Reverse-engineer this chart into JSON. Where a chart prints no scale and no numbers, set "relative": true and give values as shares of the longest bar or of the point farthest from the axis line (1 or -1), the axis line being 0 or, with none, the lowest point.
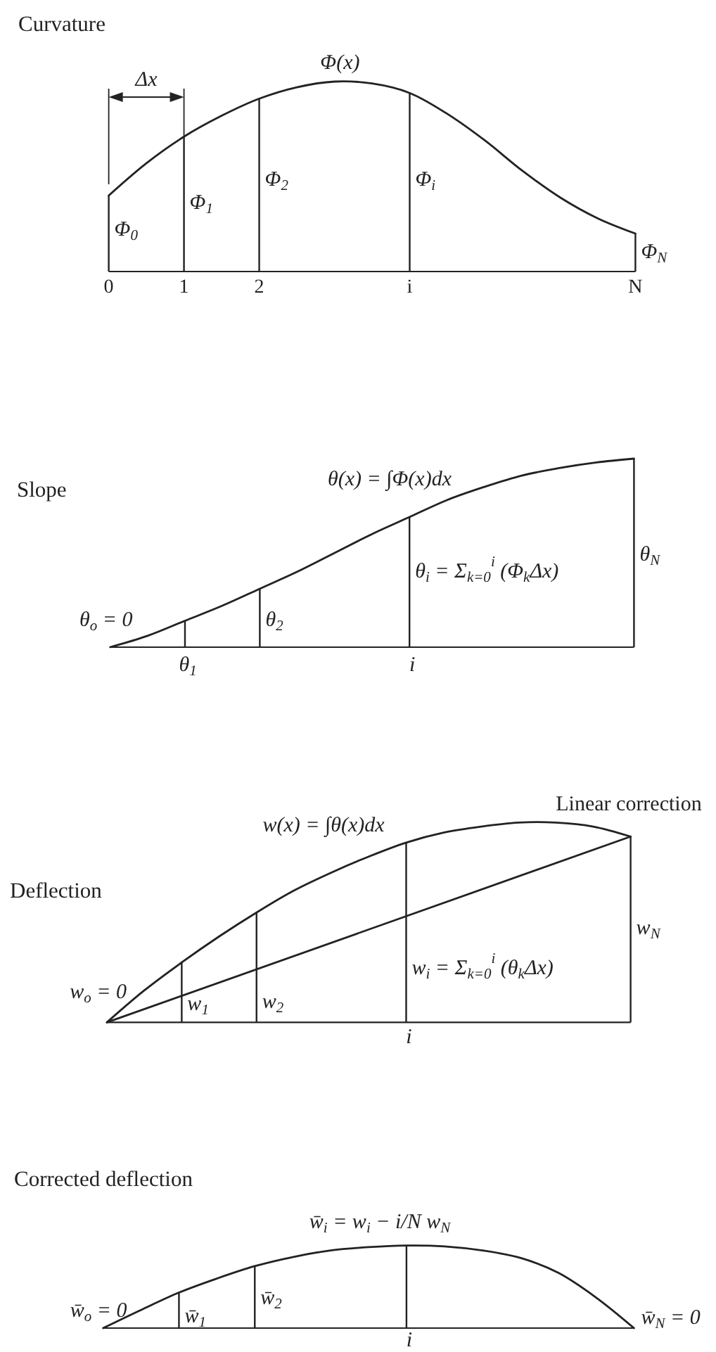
{
  "chart_data": [
    {
      "type": "line",
      "title": "Curvature",
      "relative": true,
      "xlim": [
        0,
        7
      ],
      "xticks": [
        0,
        1,
        2,
        {
          "value": 4,
          "label": "i"
        },
        {
          "value": 7,
          "label": "N"
        }
      ],
      "x": [
        0,
        0.5,
        1,
        1.5,
        2,
        2.5,
        3,
        3.5,
        4,
        4.5,
        5,
        5.5,
        6,
        6.5,
        7
      ],
      "series": [
        {
          "name": "Φ(x)",
          "color": "#222222",
          "values": [
            0.4,
            0.57,
            0.71,
            0.82,
            0.91,
            0.97,
            1.0,
            0.99,
            0.94,
            0.83,
            0.69,
            0.53,
            0.39,
            0.28,
            0.2
          ]
        },
        {
          "type": "bar",
          "color": "#222222",
          "x": [
            0,
            1,
            2,
            4,
            7
          ],
          "values": [
            0.4,
            0.71,
            0.91,
            0.94,
            0.2
          ]
        }
      ],
      "annotations": [
        "Δx",
        {
          "text": "Φ$_{0}$",
          "x": 0,
          "y": 0.22
        },
        {
          "text": "Φ$_{1}$",
          "x": 1,
          "y": 0.36
        },
        {
          "text": "Φ$_{2}$",
          "x": 2,
          "y": 0.48
        },
        {
          "text": "Φ$_{i}$",
          "x": 4,
          "y": 0.48
        },
        {
          "text": "Φ$_{N}$",
          "x": 7,
          "y": 0.1
        }
      ]
    },
    {
      "type": "line",
      "title": "Slope",
      "relative": true,
      "xlim": [
        0,
        7
      ],
      "tick_labels": false,
      "x": [
        0,
        0.5,
        1,
        1.5,
        2,
        2.5,
        3,
        3.5,
        4,
        4.5,
        5,
        5.5,
        6,
        6.5,
        7
      ],
      "series": [
        {
          "name": "θ(x) = ∫Φ(x)dx",
          "color": "#222222",
          "values": [
            0,
            0.06,
            0.14,
            0.22,
            0.31,
            0.4,
            0.5,
            0.6,
            0.69,
            0.78,
            0.85,
            0.91,
            0.95,
            0.98,
            1.0
          ]
        },
        {
          "type": "bar",
          "color": "#222222",
          "x": [
            1,
            2,
            4,
            7
          ],
          "values": [
            0.14,
            0.31,
            0.69,
            1.0
          ]
        }
      ],
      "annotations": [
        {
          "text": "θ$_{o}$ = 0",
          "x": 0,
          "y": 0
        },
        {
          "text": "θ$_{1}$",
          "x": 1,
          "y": 0
        },
        {
          "text": "θ$_{2}$",
          "x": 2,
          "y": 0.14
        },
        {
          "text": "θ$_{i}$ = Σ$_{k=0}$$^{i}$ (Φ$_{k}$Δx)",
          "x": 4,
          "y": 0.4
        },
        {
          "text": "θ$_{N}$",
          "x": 7,
          "y": 0.49
        },
        {
          "text": "i",
          "x": 4,
          "y": 0
        }
      ]
    },
    {
      "type": "line",
      "title": "Deflection",
      "relative": true,
      "xlim": [
        0,
        7
      ],
      "tick_labels": false,
      "x": [
        0,
        0.5,
        1,
        1.5,
        2,
        2.5,
        3,
        3.5,
        4,
        4.5,
        5,
        5.5,
        6,
        6.5,
        7
      ],
      "series": [
        {
          "name": "w(x) = ∫θ(x)dx",
          "color": "#222222",
          "values": [
            0,
            0.16,
            0.3,
            0.43,
            0.55,
            0.66,
            0.75,
            0.83,
            0.9,
            0.95,
            0.98,
            1.0,
            1.0,
            0.98,
            0.93
          ]
        },
        {
          "name": "Linear correction",
          "color": "#222222",
          "x": [
            0,
            7
          ],
          "values": [
            0,
            0.93
          ]
        },
        {
          "type": "bar",
          "color": "#222222",
          "x": [
            1,
            2,
            4,
            7
          ],
          "values": [
            0.3,
            0.55,
            0.9,
            0.93
          ]
        }
      ],
      "annotations": [
        {
          "text": "w$_{o}$ = 0",
          "x": 0,
          "y": 0
        },
        {
          "text": "w$_{1}$",
          "x": 1,
          "y": 0.09
        },
        {
          "text": "w$_{2}$",
          "x": 2,
          "y": 0.1
        },
        {
          "text": "w$_{i}$ = Σ$_{k=0}$$^{i}$ (θ$_{k}$Δx)",
          "x": 4,
          "y": 0.27
        },
        {
          "text": "w$_{N}$",
          "x": 7,
          "y": 0.47
        },
        {
          "text": "i",
          "x": 4,
          "y": 0
        }
      ]
    },
    {
      "type": "line",
      "title": "Corrected deflection",
      "relative": true,
      "xlim": [
        0,
        7
      ],
      "tick_labels": false,
      "x": [
        0,
        0.5,
        1,
        1.5,
        2,
        2.5,
        3,
        3.5,
        4,
        4.5,
        5,
        5.5,
        6,
        6.5,
        7
      ],
      "series": [
        {
          "name": "w̄$_{i}$ = w$_{i}$ − i/N w$_{N}$",
          "color": "#222222",
          "values": [
            0,
            0.22,
            0.43,
            0.6,
            0.75,
            0.86,
            0.94,
            0.98,
            1.0,
            0.99,
            0.94,
            0.85,
            0.67,
            0.37,
            0
          ]
        },
        {
          "type": "bar",
          "color": "#222222",
          "x": [
            1,
            2,
            4
          ],
          "values": [
            0.43,
            0.75,
            1.0
          ]
        }
      ],
      "annotations": [
        {
          "text": "w̄$_{o}$ = 0",
          "x": 0,
          "y": 0
        },
        {
          "text": "w̄$_{1}$",
          "x": 1,
          "y": 0.14
        },
        {
          "text": "w̄$_{2}$",
          "x": 2,
          "y": 0.36
        },
        {
          "text": "w̄$_{N}$ = 0",
          "x": 7,
          "y": 0
        },
        {
          "text": "i",
          "x": 4,
          "y": 0
        }
      ]
    }
  ]
}
